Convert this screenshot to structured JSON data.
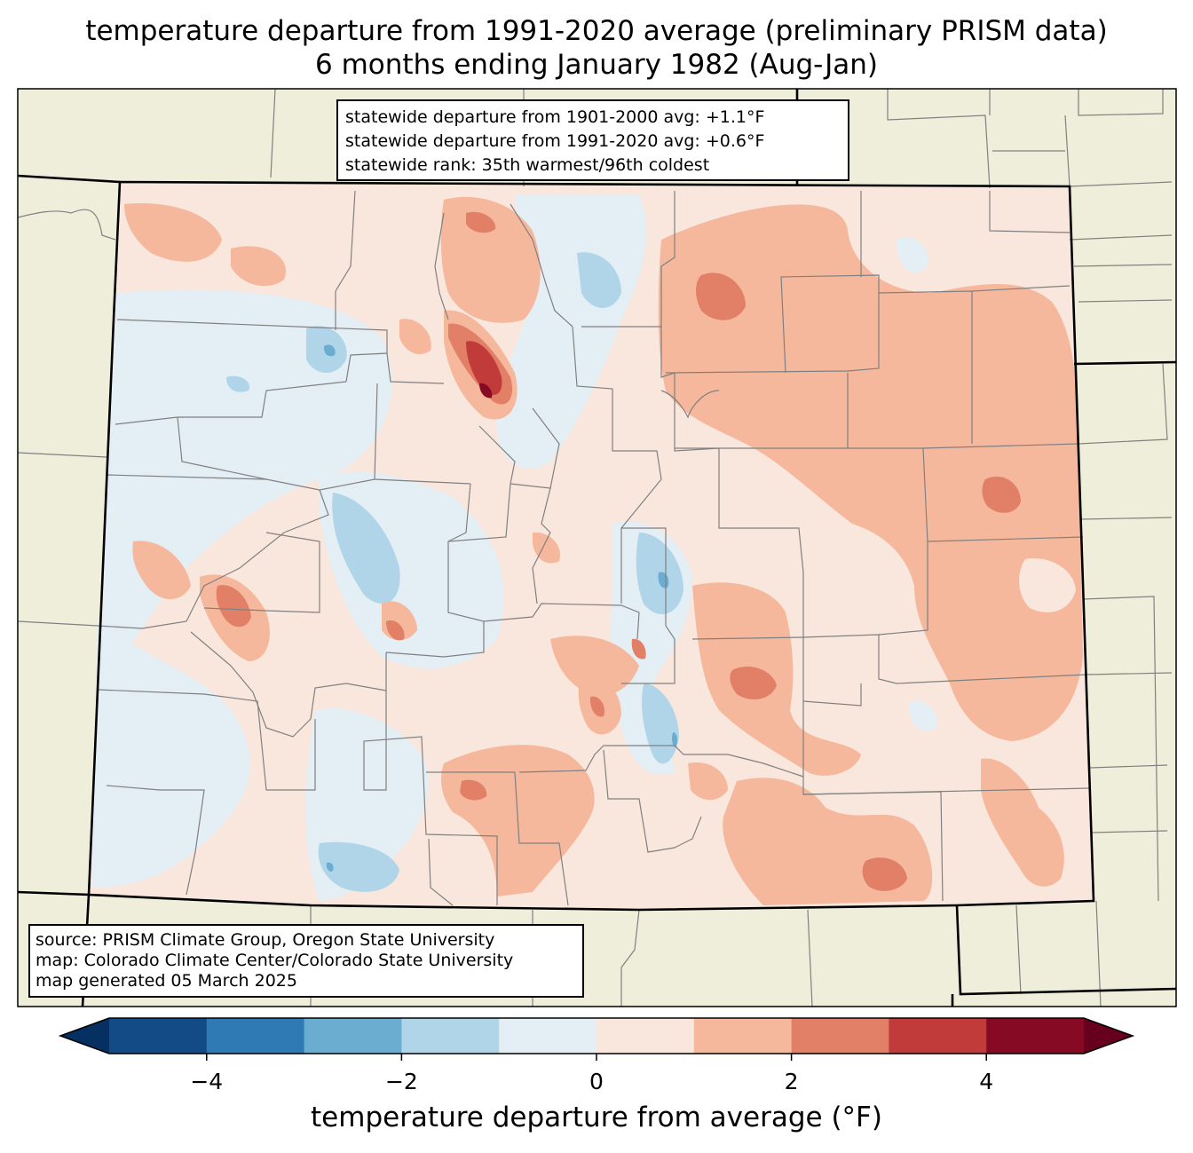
{
  "title_line1": "temperature departure from 1991-2020 average (preliminary PRISM data)",
  "title_line2": "6 months ending January 1982 (Aug-Jan)",
  "stats": {
    "line1": "statewide departure from 1901-2000 avg: +1.1°F",
    "line2": "statewide departure from 1991-2020 avg: +0.6°F",
    "line3": "statewide rank: 35th warmest/96th coldest"
  },
  "source": {
    "line1": "source: PRISM Climate Group, Oregon State University",
    "line2": "map: Colorado Climate Center/Colorado State University",
    "line3": "map generated 05 March 2025"
  },
  "colorbar": {
    "label": "temperature departure from average (°F)",
    "bins": [
      {
        "min": -5,
        "max": -4,
        "color": "#134b87"
      },
      {
        "min": -4,
        "max": -3,
        "color": "#2f79b5"
      },
      {
        "min": -3,
        "max": -2,
        "color": "#6bacd1"
      },
      {
        "min": -2,
        "max": -1,
        "color": "#b0d5e8"
      },
      {
        "min": -1,
        "max": 0,
        "color": "#e4eef5"
      },
      {
        "min": 0,
        "max": 1,
        "color": "#f9e7dd"
      },
      {
        "min": 1,
        "max": 2,
        "color": "#f5b89c"
      },
      {
        "min": 2,
        "max": 3,
        "color": "#e17f67"
      },
      {
        "min": 3,
        "max": 4,
        "color": "#c23b3b"
      },
      {
        "min": 4,
        "max": 5,
        "color": "#870a24"
      }
    ],
    "under_color": "#053061",
    "over_color": "#67001f",
    "ticks": [
      "−4",
      "−2",
      "0",
      "2",
      "4"
    ]
  },
  "colors": {
    "land_outside": "#efeedb",
    "county_lines": "#808080",
    "state_lines": "#000000"
  }
}
